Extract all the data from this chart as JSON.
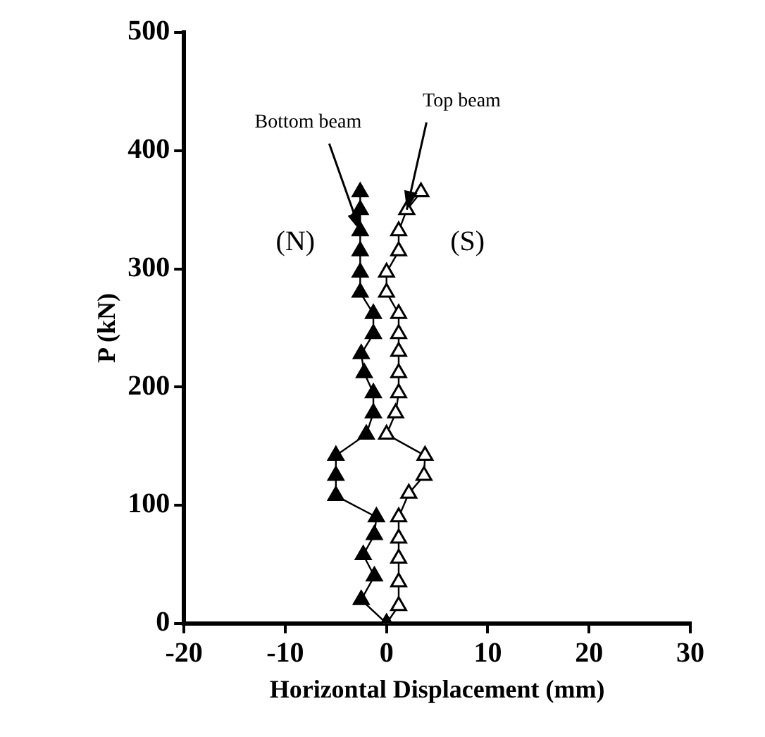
{
  "chart_data": {
    "type": "line",
    "xlabel": "Horizontal Displacement (mm)",
    "ylabel": "P (kN)",
    "xlim": [
      -20,
      30
    ],
    "xticks": [
      -20,
      -10,
      0,
      10,
      20,
      30
    ],
    "ylim": [
      0,
      500
    ],
    "yticks": [
      0,
      100,
      200,
      300,
      400,
      500
    ],
    "grid": false,
    "legend": false,
    "marker": "triangle",
    "line_style": "solid",
    "series": [
      {
        "color": "#000000",
        "x": [
          0,
          -2.5,
          -1.2,
          -2.3,
          -1.2,
          -1,
          -5,
          -5,
          -5,
          -2,
          -1.3,
          -1.3,
          -2.2,
          -2.5,
          -1.3,
          -1.3,
          -2.6,
          -2.6,
          -2.6,
          -2.6,
          -2.6,
          -2.6
        ],
        "values": [
          0,
          20,
          40,
          58,
          75,
          90,
          108,
          125,
          142,
          160,
          178,
          195,
          212,
          228,
          245,
          262,
          280,
          297,
          315,
          332,
          350,
          365
        ]
      },
      {
        "color": "#000000",
        "x": [
          0,
          1.2,
          1.2,
          1.2,
          1.2,
          1.2,
          2.2,
          3.7,
          3.8,
          0,
          0.9,
          1.2,
          1.2,
          1.2,
          1.2,
          1.2,
          0,
          0,
          1.2,
          1.2,
          2,
          3.4
        ],
        "values": [
          0,
          15,
          35,
          55,
          72,
          90,
          110,
          125,
          142,
          160,
          178,
          195,
          212,
          230,
          245,
          262,
          280,
          297,
          315,
          332,
          350,
          365
        ]
      }
    ],
    "annotations": [
      {
        "text": "Bottom beam",
        "x": -2.6,
        "y": 332
      },
      {
        "text": "Top beam",
        "x": 2,
        "y": 350
      },
      "(N)",
      "(S)"
    ]
  }
}
